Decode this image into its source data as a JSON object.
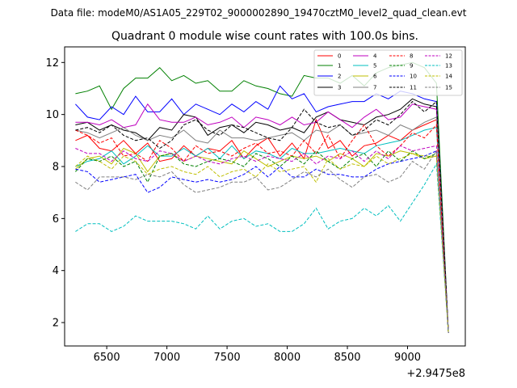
{
  "figure": {
    "suptitle": "Data file: modeM0/AS1A05_229T02_9000002890_19470cztM0_level2_quad_clean.evt"
  },
  "chart_data": {
    "type": "line",
    "title": "Quadrant 0 module wise count rates with 100.0s bins.",
    "xlabel": "",
    "ylabel": "",
    "x_offset_label": "+2.9475e8",
    "xlim": [
      6150,
      9480
    ],
    "ylim": [
      1.1,
      12.6
    ],
    "xticks": [
      6500,
      7000,
      7500,
      8000,
      8500,
      9000
    ],
    "xtick_labels": [
      "6500",
      "7000",
      "7500",
      "8000",
      "8500",
      "9000"
    ],
    "yticks": [
      2,
      4,
      6,
      8,
      10,
      12
    ],
    "ytick_labels": [
      "2",
      "4",
      "6",
      "8",
      "10",
      "12"
    ],
    "grid": false,
    "legend_position": "top-right",
    "legend_columns": 4,
    "x": [
      6240,
      6340,
      6440,
      6540,
      6640,
      6740,
      6840,
      6940,
      7040,
      7140,
      7240,
      7340,
      7440,
      7540,
      7640,
      7740,
      7840,
      7940,
      8040,
      8140,
      8240,
      8340,
      8440,
      8540,
      8640,
      8740,
      8840,
      8940,
      9040,
      9140,
      9240,
      9340
    ],
    "series": [
      {
        "name": "0",
        "color": "#ff0000",
        "dash": "solid",
        "values": [
          9.0,
          9.2,
          8.7,
          8.6,
          9.0,
          8.5,
          8.9,
          8.2,
          8.3,
          8.8,
          8.4,
          8.7,
          8.6,
          9.0,
          8.3,
          8.8,
          9.1,
          8.4,
          8.9,
          8.3,
          9.8,
          8.7,
          9.0,
          8.4,
          8.8,
          8.9,
          9.2,
          9.0,
          9.4,
          9.6,
          9.8,
          1.6
        ]
      },
      {
        "name": "1",
        "color": "#008000",
        "dash": "solid",
        "values": [
          10.8,
          10.9,
          11.1,
          10.2,
          11.0,
          11.4,
          11.4,
          11.8,
          11.3,
          11.5,
          11.2,
          11.3,
          10.9,
          10.9,
          11.3,
          11.1,
          11.0,
          10.8,
          10.7,
          11.5,
          11.4,
          11.4,
          11.2,
          11.5,
          11.1,
          11.6,
          11.8,
          11.9,
          12.0,
          11.8,
          11.2,
          1.6
        ]
      },
      {
        "name": "2",
        "color": "#0000ff",
        "dash": "solid",
        "values": [
          10.4,
          9.9,
          9.8,
          10.3,
          10.0,
          10.7,
          10.1,
          10.1,
          10.6,
          10.0,
          10.4,
          10.2,
          10.0,
          10.4,
          10.1,
          10.5,
          10.2,
          11.1,
          10.6,
          10.8,
          10.1,
          10.3,
          10.4,
          10.5,
          10.5,
          10.8,
          10.6,
          10.9,
          10.8,
          10.6,
          10.5,
          1.6
        ]
      },
      {
        "name": "3",
        "color": "#000000",
        "dash": "solid",
        "values": [
          9.6,
          9.7,
          9.4,
          9.6,
          9.4,
          9.3,
          9.0,
          9.5,
          9.4,
          10.0,
          9.9,
          9.2,
          9.5,
          9.6,
          9.3,
          9.7,
          9.6,
          9.4,
          9.5,
          9.3,
          9.9,
          10.1,
          9.8,
          9.7,
          9.6,
          9.9,
          10.0,
          10.2,
          10.6,
          10.4,
          10.3,
          1.6
        ]
      },
      {
        "name": "4",
        "color": "#bf00bf",
        "dash": "solid",
        "values": [
          9.7,
          9.7,
          9.6,
          9.8,
          9.5,
          9.6,
          10.4,
          9.8,
          9.7,
          9.7,
          9.9,
          9.6,
          9.7,
          9.9,
          9.5,
          9.9,
          9.8,
          9.6,
          9.9,
          9.6,
          9.7,
          10.1,
          9.8,
          9.5,
          9.9,
          10.2,
          9.8,
          9.9,
          10.4,
          10.3,
          10.2,
          1.6
        ]
      },
      {
        "name": "5",
        "color": "#00bfbf",
        "dash": "solid",
        "values": [
          8.0,
          8.2,
          8.3,
          8.6,
          8.1,
          8.4,
          8.8,
          8.4,
          8.4,
          8.7,
          8.4,
          8.7,
          8.3,
          8.8,
          8.3,
          8.6,
          8.5,
          8.3,
          8.7,
          8.5,
          8.5,
          8.6,
          8.7,
          8.6,
          8.5,
          8.8,
          8.9,
          9.0,
          9.2,
          9.4,
          9.5,
          1.6
        ]
      },
      {
        "name": "6",
        "color": "#bfbf00",
        "dash": "solid",
        "values": [
          7.9,
          8.3,
          8.4,
          8.1,
          8.7,
          8.5,
          7.8,
          8.4,
          8.5,
          8.2,
          8.4,
          8.3,
          8.2,
          8.1,
          8.6,
          8.3,
          8.0,
          8.2,
          8.4,
          8.3,
          8.4,
          8.2,
          8.5,
          8.3,
          8.0,
          8.5,
          8.4,
          8.6,
          8.5,
          8.3,
          8.4,
          1.6
        ]
      },
      {
        "name": "7",
        "color": "#808080",
        "dash": "solid",
        "values": [
          9.4,
          9.3,
          9.1,
          9.3,
          9.5,
          9.2,
          9.0,
          9.2,
          9.1,
          9.4,
          9.0,
          8.9,
          9.4,
          9.1,
          9.1,
          9.0,
          9.1,
          9.2,
          9.3,
          9.0,
          9.4,
          9.3,
          9.6,
          9.2,
          9.3,
          9.4,
          9.2,
          9.6,
          9.4,
          9.7,
          9.9,
          1.6
        ]
      },
      {
        "name": "8",
        "color": "#ff0000",
        "dash": "dashed",
        "values": [
          9.4,
          9.2,
          8.9,
          9.1,
          8.4,
          8.5,
          8.2,
          9.0,
          8.7,
          8.2,
          8.8,
          8.5,
          8.6,
          8.4,
          8.7,
          8.9,
          8.5,
          8.6,
          8.4,
          9.0,
          8.5,
          9.2,
          8.3,
          9.0,
          9.6,
          8.8,
          8.4,
          8.8,
          9.3,
          9.1,
          9.6,
          1.6
        ]
      },
      {
        "name": "9",
        "color": "#008000",
        "dash": "dashed",
        "values": [
          7.8,
          8.3,
          8.2,
          8.4,
          8.0,
          8.2,
          7.4,
          8.4,
          8.5,
          8.1,
          8.0,
          8.2,
          8.3,
          8.2,
          8.0,
          8.5,
          8.3,
          8.0,
          8.4,
          8.1,
          8.6,
          8.2,
          7.9,
          8.3,
          8.5,
          8.0,
          8.6,
          8.2,
          8.6,
          8.3,
          8.5,
          1.6
        ]
      },
      {
        "name": "10",
        "color": "#0000ff",
        "dash": "dashed",
        "values": [
          7.9,
          7.8,
          7.4,
          7.5,
          7.6,
          7.7,
          7.0,
          7.2,
          7.6,
          7.5,
          7.4,
          7.5,
          7.4,
          7.5,
          7.7,
          8.0,
          7.6,
          8.0,
          7.6,
          7.6,
          7.9,
          7.7,
          7.7,
          7.6,
          7.6,
          7.9,
          8.1,
          8.2,
          8.3,
          8.4,
          8.6,
          1.6
        ]
      },
      {
        "name": "11",
        "color": "#000000",
        "dash": "dashed",
        "values": [
          9.4,
          9.5,
          9.3,
          9.6,
          9.2,
          9.0,
          9.1,
          8.7,
          9.0,
          9.6,
          9.8,
          9.4,
          9.2,
          9.6,
          9.5,
          9.3,
          9.1,
          9.0,
          9.5,
          10.2,
          9.7,
          9.5,
          9.6,
          9.2,
          9.4,
          9.8,
          9.6,
          10.0,
          10.5,
          10.1,
          10.5,
          1.6
        ]
      },
      {
        "name": "12",
        "color": "#bf00bf",
        "dash": "dashed",
        "values": [
          8.7,
          8.5,
          8.5,
          8.2,
          8.6,
          8.3,
          8.2,
          8.6,
          8.5,
          8.2,
          8.4,
          8.2,
          8.1,
          8.3,
          8.4,
          8.2,
          8.4,
          8.3,
          8.2,
          8.5,
          8.1,
          8.4,
          8.3,
          8.6,
          8.2,
          8.6,
          8.3,
          8.8,
          8.6,
          8.7,
          8.8,
          1.6
        ]
      },
      {
        "name": "13",
        "color": "#00bfbf",
        "dash": "dashed",
        "values": [
          5.5,
          5.8,
          5.8,
          5.5,
          5.7,
          6.1,
          5.9,
          5.9,
          5.9,
          5.8,
          5.6,
          6.1,
          5.6,
          5.9,
          6.0,
          5.7,
          5.8,
          5.5,
          5.5,
          5.8,
          6.4,
          5.6,
          5.9,
          6.0,
          6.4,
          6.1,
          6.5,
          5.9,
          6.6,
          7.3,
          8.1,
          1.6
        ]
      },
      {
        "name": "14",
        "color": "#bfbf00",
        "dash": "dashed",
        "values": [
          8.0,
          8.4,
          8.2,
          7.9,
          8.4,
          8.2,
          7.7,
          7.9,
          8.0,
          7.8,
          7.7,
          8.0,
          7.6,
          7.8,
          7.9,
          7.6,
          8.1,
          7.8,
          7.9,
          8.0,
          7.4,
          8.3,
          7.9,
          8.1,
          8.0,
          8.4,
          8.1,
          8.3,
          8.5,
          8.4,
          8.4,
          1.6
        ]
      },
      {
        "name": "15",
        "color": "#808080",
        "dash": "dashed",
        "values": [
          7.4,
          7.1,
          7.6,
          7.6,
          7.6,
          7.5,
          7.7,
          7.6,
          7.8,
          7.3,
          7.0,
          7.1,
          7.2,
          7.4,
          7.4,
          7.6,
          7.1,
          7.2,
          7.5,
          7.8,
          7.6,
          7.9,
          7.5,
          7.2,
          7.6,
          7.7,
          7.4,
          7.6,
          8.2,
          7.9,
          8.6,
          1.6
        ]
      }
    ]
  }
}
